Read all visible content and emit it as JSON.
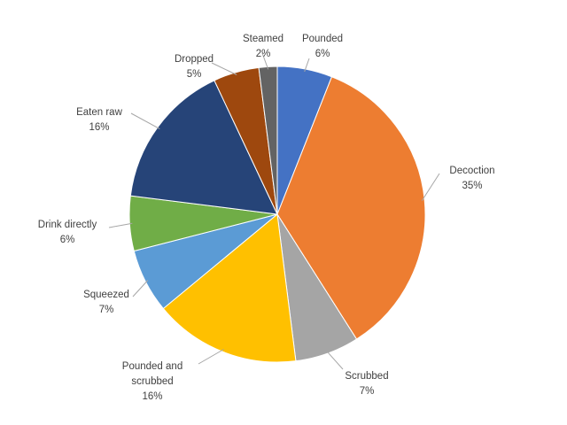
{
  "chart_data": {
    "type": "pie",
    "title": "",
    "start_angle_deg": 0,
    "direction": "clockwise",
    "slices": [
      {
        "label_lines": [
          "Pounded"
        ],
        "percent_text": "6%",
        "value": 6,
        "color": "#4472C4"
      },
      {
        "label_lines": [
          "Decoction"
        ],
        "percent_text": "35%",
        "value": 35,
        "color": "#ED7D31"
      },
      {
        "label_lines": [
          "Scrubbed"
        ],
        "percent_text": "7%",
        "value": 7,
        "color": "#A5A5A5"
      },
      {
        "label_lines": [
          "Pounded and",
          "scrubbed"
        ],
        "percent_text": "16%",
        "value": 16,
        "color": "#FFC000"
      },
      {
        "label_lines": [
          "Squeezed"
        ],
        "percent_text": "7%",
        "value": 7,
        "color": "#5B9BD5"
      },
      {
        "label_lines": [
          "Drink directly"
        ],
        "percent_text": "6%",
        "value": 6,
        "color": "#70AD47"
      },
      {
        "label_lines": [
          "Eaten raw"
        ],
        "percent_text": "16%",
        "value": 16,
        "color": "#264478"
      },
      {
        "label_lines": [
          "Dropped"
        ],
        "percent_text": "5%",
        "value": 5,
        "color": "#9E480E"
      },
      {
        "label_lines": [
          "Steamed"
        ],
        "percent_text": "2%",
        "value": 2,
        "color": "#636363"
      }
    ]
  }
}
